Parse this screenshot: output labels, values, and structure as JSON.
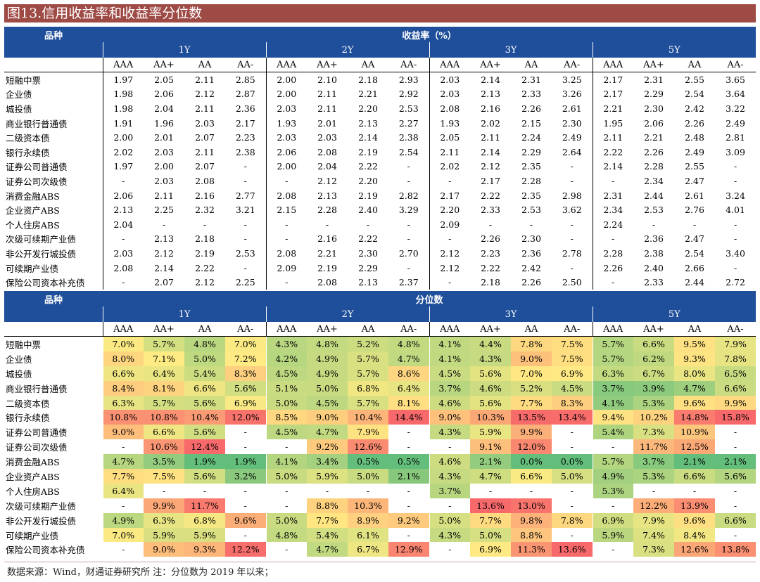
{
  "title": "图13.信用收益率和收益率分位数",
  "yield_table": {
    "header_left": "品种",
    "header_main": "收益率（%）",
    "tenors": [
      "1Y",
      "2Y",
      "3Y",
      "5Y"
    ],
    "grades": [
      "AAA",
      "AA+",
      "AA",
      "AA-"
    ],
    "rows": [
      {
        "name": "短融中票",
        "values": [
          "1.97",
          "2.05",
          "2.11",
          "2.85",
          "2.00",
          "2.10",
          "2.18",
          "2.93",
          "2.03",
          "2.14",
          "2.31",
          "3.25",
          "2.17",
          "2.31",
          "2.55",
          "3.65"
        ]
      },
      {
        "name": "企业债",
        "values": [
          "1.98",
          "2.06",
          "2.12",
          "2.87",
          "2.00",
          "2.11",
          "2.21",
          "2.92",
          "2.03",
          "2.13",
          "2.33",
          "3.26",
          "2.17",
          "2.29",
          "2.54",
          "3.64"
        ]
      },
      {
        "name": "城投债",
        "values": [
          "1.98",
          "2.04",
          "2.11",
          "2.36",
          "2.03",
          "2.11",
          "2.20",
          "2.53",
          "2.08",
          "2.16",
          "2.26",
          "2.61",
          "2.21",
          "2.30",
          "2.42",
          "3.22"
        ]
      },
      {
        "name": "商业银行普通债",
        "values": [
          "1.91",
          "1.96",
          "2.03",
          "2.17",
          "1.93",
          "2.01",
          "2.13",
          "2.27",
          "1.93",
          "2.02",
          "2.15",
          "2.30",
          "1.95",
          "2.06",
          "2.26",
          "2.49"
        ]
      },
      {
        "name": "二级资本债",
        "values": [
          "2.00",
          "2.01",
          "2.07",
          "2.23",
          "2.03",
          "2.03",
          "2.14",
          "2.38",
          "2.05",
          "2.11",
          "2.24",
          "2.49",
          "2.11",
          "2.21",
          "2.48",
          "2.81"
        ]
      },
      {
        "name": "银行永续债",
        "values": [
          "2.02",
          "2.03",
          "2.11",
          "2.38",
          "2.06",
          "2.08",
          "2.19",
          "2.54",
          "2.11",
          "2.14",
          "2.29",
          "2.64",
          "2.22",
          "2.26",
          "2.49",
          "3.09"
        ]
      },
      {
        "name": "证券公司普通债",
        "values": [
          "1.97",
          "2.00",
          "2.07",
          "-",
          "2.00",
          "2.04",
          "2.22",
          "-",
          "2.02",
          "2.12",
          "2.35",
          "-",
          "2.14",
          "2.28",
          "2.55",
          "-"
        ]
      },
      {
        "name": "证券公司次级债",
        "values": [
          "-",
          "2.03",
          "2.08",
          "-",
          "-",
          "2.12",
          "2.20",
          "-",
          "-",
          "2.17",
          "2.28",
          "-",
          "-",
          "2.34",
          "2.47",
          "-"
        ]
      },
      {
        "name": "消费金融ABS",
        "values": [
          "2.06",
          "2.11",
          "2.16",
          "2.77",
          "2.08",
          "2.13",
          "2.19",
          "2.82",
          "2.17",
          "2.22",
          "2.35",
          "2.98",
          "2.31",
          "2.44",
          "2.61",
          "3.24"
        ]
      },
      {
        "name": "企业资产ABS",
        "values": [
          "2.13",
          "2.25",
          "2.32",
          "3.21",
          "2.15",
          "2.28",
          "2.40",
          "3.29",
          "2.20",
          "2.33",
          "2.53",
          "3.62",
          "2.34",
          "2.53",
          "2.76",
          "4.01"
        ]
      },
      {
        "name": "个人住房ABS",
        "values": [
          "2.04",
          "-",
          "-",
          "-",
          "-",
          "-",
          "-",
          "-",
          "2.09",
          "-",
          "-",
          "-",
          "2.24",
          "-",
          "-",
          "-"
        ]
      },
      {
        "name": "次级可续期产业债",
        "values": [
          "-",
          "2.13",
          "2.18",
          "-",
          "-",
          "2.16",
          "2.22",
          "-",
          "-",
          "2.26",
          "2.30",
          "-",
          "-",
          "2.36",
          "2.47",
          "-"
        ]
      },
      {
        "name": "非公开发行城投债",
        "values": [
          "2.03",
          "2.12",
          "2.19",
          "2.53",
          "2.08",
          "2.21",
          "2.30",
          "2.70",
          "2.12",
          "2.23",
          "2.36",
          "2.78",
          "2.28",
          "2.38",
          "2.54",
          "3.40"
        ]
      },
      {
        "name": "可续期产业债",
        "values": [
          "2.08",
          "2.14",
          "2.22",
          "-",
          "2.09",
          "2.19",
          "2.29",
          "-",
          "2.12",
          "2.22",
          "2.42",
          "-",
          "2.26",
          "2.40",
          "2.66",
          "-"
        ]
      },
      {
        "name": "保险公司资本补充债",
        "values": [
          "-",
          "2.07",
          "2.12",
          "2.25",
          "-",
          "2.08",
          "2.13",
          "2.37",
          "-",
          "2.18",
          "2.26",
          "2.50",
          "-",
          "2.33",
          "2.44",
          "2.72"
        ]
      }
    ]
  },
  "percentile_table": {
    "header_left": "品种",
    "header_main": "分位数",
    "tenors": [
      "1Y",
      "2Y",
      "3Y",
      "5Y"
    ],
    "grades": [
      "AAA",
      "AA+",
      "AA",
      "AA-"
    ],
    "rows": [
      {
        "name": "短融中票",
        "values": [
          "7.0%",
          "5.7%",
          "4.8%",
          "7.0%",
          "4.3%",
          "4.8%",
          "5.2%",
          "4.8%",
          "4.1%",
          "4.4%",
          "7.8%",
          "7.5%",
          "5.7%",
          "6.6%",
          "9.5%",
          "7.9%"
        ]
      },
      {
        "name": "企业债",
        "values": [
          "8.0%",
          "7.1%",
          "5.0%",
          "7.2%",
          "4.2%",
          "4.9%",
          "5.7%",
          "4.7%",
          "4.1%",
          "4.3%",
          "9.0%",
          "7.5%",
          "5.7%",
          "6.2%",
          "9.3%",
          "7.8%"
        ]
      },
      {
        "name": "城投债",
        "values": [
          "6.6%",
          "6.4%",
          "5.4%",
          "8.3%",
          "4.5%",
          "4.9%",
          "5.7%",
          "8.6%",
          "4.5%",
          "5.6%",
          "7.0%",
          "6.9%",
          "6.3%",
          "6.7%",
          "8.0%",
          "6.5%"
        ]
      },
      {
        "name": "商业银行普通债",
        "values": [
          "8.4%",
          "8.1%",
          "6.6%",
          "5.6%",
          "5.1%",
          "5.0%",
          "6.8%",
          "6.4%",
          "3.7%",
          "4.6%",
          "5.2%",
          "4.5%",
          "3.7%",
          "3.9%",
          "4.7%",
          "6.6%"
        ]
      },
      {
        "name": "二级资本债",
        "values": [
          "6.3%",
          "5.7%",
          "5.6%",
          "6.9%",
          "5.0%",
          "4.5%",
          "5.7%",
          "8.1%",
          "4.6%",
          "5.6%",
          "7.7%",
          "8.3%",
          "4.1%",
          "5.3%",
          "9.6%",
          "9.9%"
        ]
      },
      {
        "name": "银行永续债",
        "values": [
          "10.8%",
          "10.8%",
          "10.4%",
          "12.0%",
          "8.5%",
          "9.0%",
          "10.4%",
          "14.4%",
          "9.0%",
          "10.3%",
          "13.5%",
          "13.4%",
          "9.4%",
          "10.2%",
          "14.8%",
          "15.8%"
        ]
      },
      {
        "name": "证券公司普通债",
        "values": [
          "9.0%",
          "6.6%",
          "5.6%",
          "-",
          "4.5%",
          "4.7%",
          "7.9%",
          "-",
          "4.3%",
          "5.9%",
          "9.9%",
          "-",
          "5.4%",
          "7.3%",
          "10.9%",
          "-"
        ]
      },
      {
        "name": "证券公司次级债",
        "values": [
          "-",
          "10.6%",
          "12.4%",
          "-",
          "-",
          "9.2%",
          "12.6%",
          "-",
          "-",
          "9.1%",
          "12.0%",
          "-",
          "-",
          "11.7%",
          "12.5%",
          "-"
        ]
      },
      {
        "name": "消费金融ABS",
        "values": [
          "4.7%",
          "3.5%",
          "1.9%",
          "1.9%",
          "4.1%",
          "3.4%",
          "0.5%",
          "0.5%",
          "4.6%",
          "2.1%",
          "0.0%",
          "0.0%",
          "5.7%",
          "3.7%",
          "2.1%",
          "2.1%"
        ]
      },
      {
        "name": "企业资产ABS",
        "values": [
          "7.7%",
          "7.5%",
          "5.6%",
          "3.2%",
          "5.0%",
          "5.9%",
          "5.0%",
          "2.1%",
          "4.3%",
          "4.7%",
          "6.6%",
          "5.0%",
          "4.9%",
          "5.3%",
          "6.6%",
          "5.6%"
        ]
      },
      {
        "name": "个人住房ABS",
        "values": [
          "6.4%",
          "-",
          "-",
          "-",
          "-",
          "-",
          "-",
          "-",
          "3.7%",
          "-",
          "-",
          "-",
          "5.3%",
          "-",
          "-",
          "-"
        ]
      },
      {
        "name": "次级可续期产业债",
        "values": [
          "-",
          "9.9%",
          "11.7%",
          "-",
          "-",
          "8.8%",
          "10.3%",
          "-",
          "-",
          "13.6%",
          "13.0%",
          "-",
          "-",
          "12.2%",
          "13.9%",
          "-"
        ]
      },
      {
        "name": "非公开发行城投债",
        "values": [
          "4.9%",
          "6.3%",
          "6.8%",
          "9.6%",
          "5.0%",
          "7.7%",
          "8.9%",
          "9.2%",
          "5.0%",
          "7.7%",
          "9.8%",
          "7.8%",
          "6.9%",
          "7.9%",
          "9.6%",
          "6.6%"
        ]
      },
      {
        "name": "可续期产业债",
        "values": [
          "7.0%",
          "5.9%",
          "5.9%",
          "-",
          "4.8%",
          "5.4%",
          "6.1%",
          "-",
          "4.3%",
          "5.0%",
          "8.8%",
          "-",
          "5.9%",
          "7.4%",
          "8.4%",
          "-"
        ]
      },
      {
        "name": "保险公司资本补充债",
        "values": [
          "-",
          "9.0%",
          "9.3%",
          "12.2%",
          "-",
          "4.7%",
          "6.7%",
          "12.9%",
          "-",
          "6.9%",
          "11.3%",
          "13.6%",
          "-",
          "7.3%",
          "12.6%",
          "13.8%"
        ]
      }
    ]
  },
  "colors": {
    "title_bg": "#9e4a45",
    "header_bg": "#1f4f9a",
    "heat_low": "#63be7b",
    "heat_mid": "#ffeb84",
    "heat_high": "#f8696b"
  },
  "source_note": "数据来源：Wind，财通证券研究所   注：分位数为 2019 年以来；"
}
